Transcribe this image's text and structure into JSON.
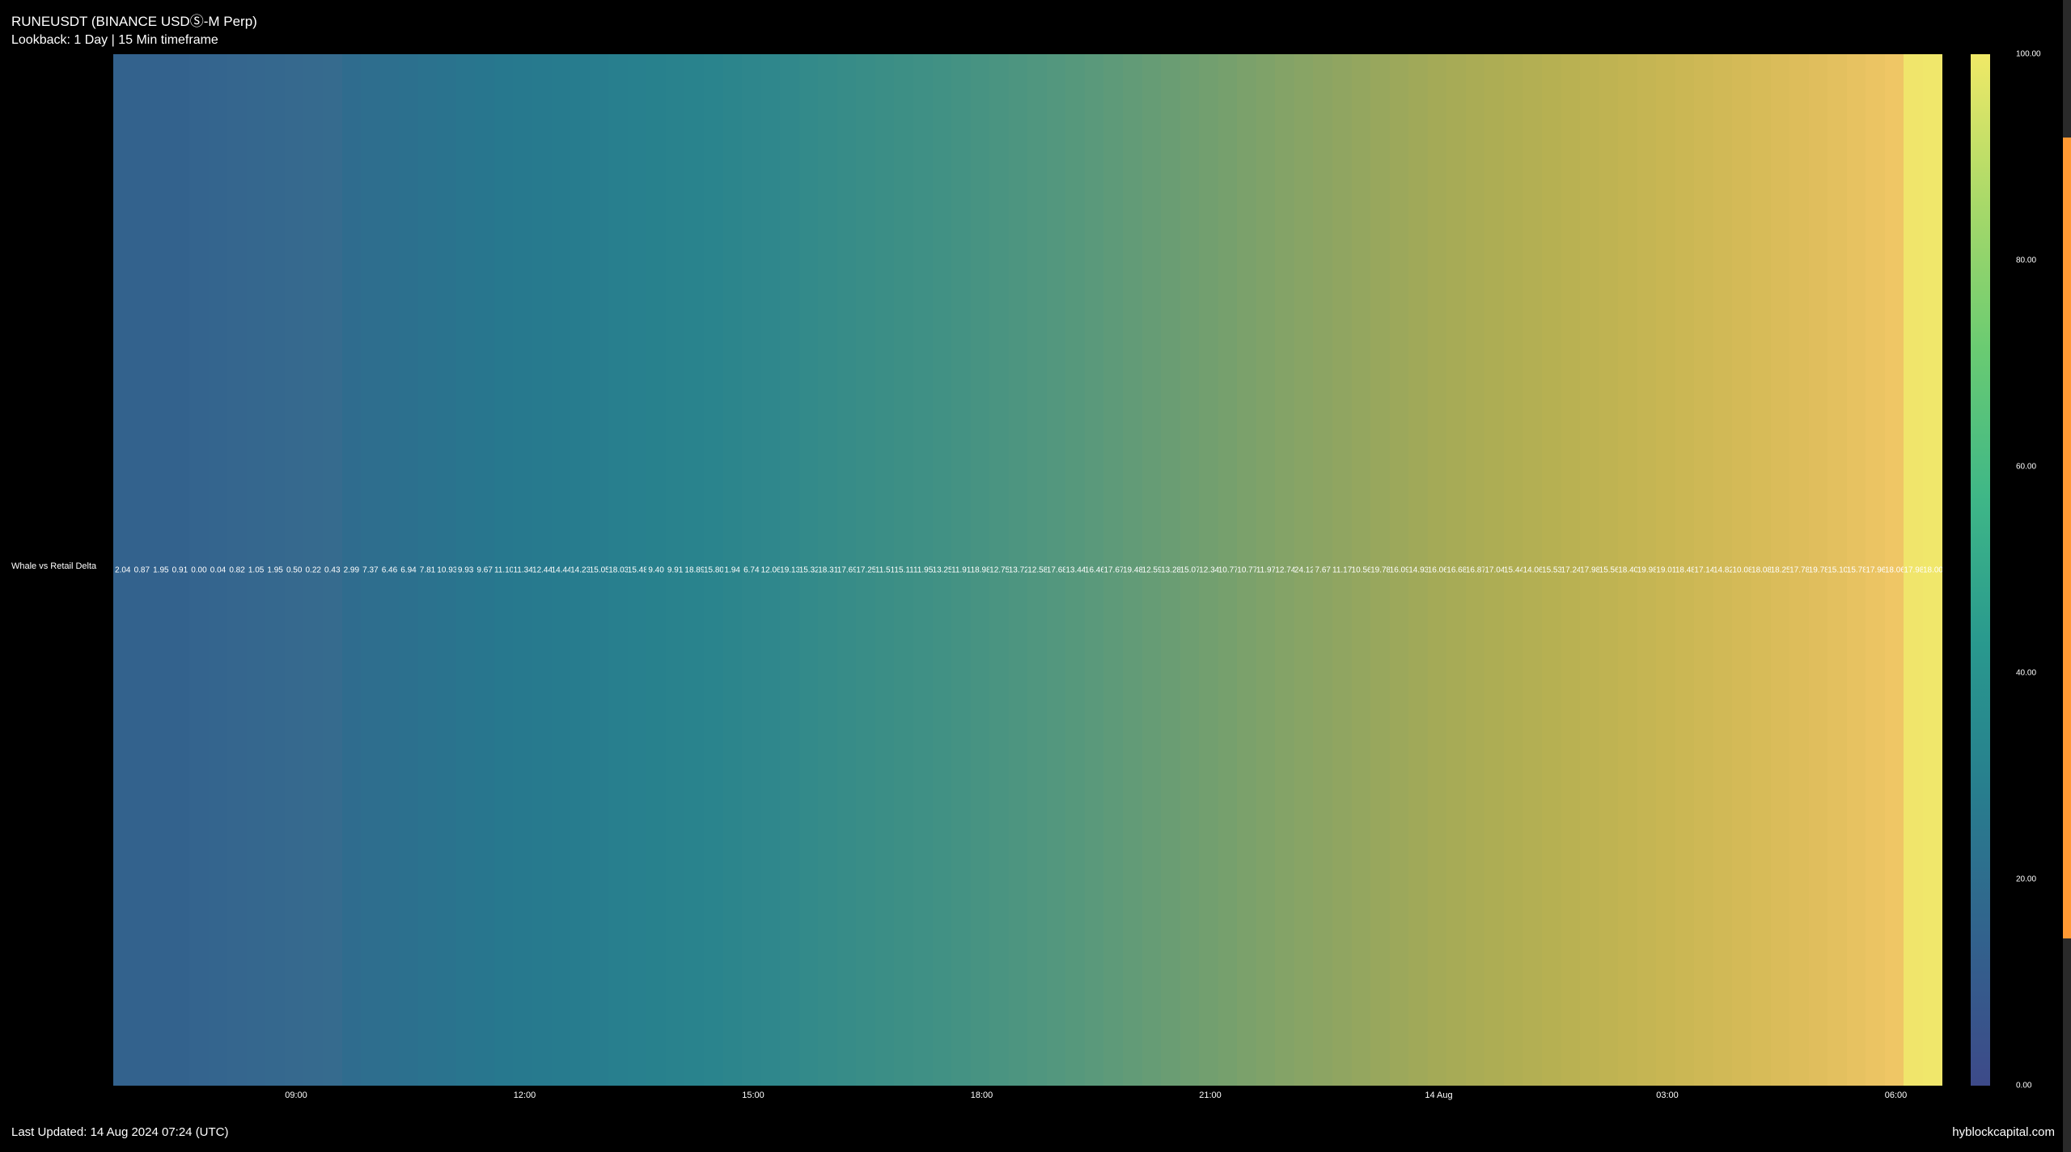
{
  "header": {
    "title": "RUNEUSDT (BINANCE USDⓈ-M Perp)",
    "subtitle": "Lookback: 1 Day | 15 Min timeframe"
  },
  "chart": {
    "type": "heatmap",
    "y_axis_label": "Whale vs Retail Delta",
    "background_color": "#000000",
    "text_color": "#ffffff",
    "values": [
      "2.04",
      "0.87",
      "1.95",
      "0.91",
      "0.00",
      "0.04",
      "0.82",
      "1.05",
      "1.95",
      "0.50",
      "0.22",
      "0.43",
      "2.99",
      "7.37",
      "6.46",
      "6.94",
      "7.81",
      "10.93",
      "9.93",
      "9.67",
      "11.10",
      "11.34",
      "12.44",
      "14.44",
      "14.23",
      "15.05",
      "18.03",
      "15.48",
      "9.40",
      "9.91",
      "18.89",
      "15.80",
      "1.94",
      "6.74",
      "12.06",
      "19.13",
      "15.32",
      "18.31",
      "17.69",
      "17.25",
      "11.51",
      "15.11",
      "11.95",
      "13.25",
      "11.91",
      "18.98",
      "12.75",
      "13.72",
      "12.58",
      "17.68",
      "13.44",
      "16.46",
      "17.67",
      "19.48",
      "12.59",
      "13.28",
      "15.07",
      "12.34",
      "10.77",
      "10.77",
      "11.97",
      "12.74",
      "24.12",
      "7.67",
      "11.17",
      "10.56",
      "19.78",
      "16.09",
      "14.93",
      "16.06",
      "16.68",
      "16.87",
      "17.04",
      "15.44",
      "14.06",
      "15.53",
      "17.24",
      "17.98",
      "15.56",
      "18.40",
      "19.98",
      "19.01",
      "18.48",
      "17.14",
      "14.82",
      "10.08",
      "18.08",
      "18.25",
      "17.78",
      "19.78",
      "15.10",
      "15.78",
      "17.96",
      "18.06",
      "17.98",
      "18.00"
    ],
    "colors": [
      "#33628d",
      "#33628d",
      "#33628d",
      "#33628d",
      "#34648e",
      "#34658e",
      "#35668e",
      "#35678e",
      "#35688e",
      "#36698e",
      "#366a8e",
      "#366b8e",
      "#2f6c8e",
      "#2e6e8e",
      "#2d6f8e",
      "#2c708e",
      "#2b728e",
      "#2a738e",
      "#29758e",
      "#28768e",
      "#27788e",
      "#27798e",
      "#277a8e",
      "#277b8e",
      "#277c8e",
      "#287d8e",
      "#287f8e",
      "#28808e",
      "#28818d",
      "#29828d",
      "#29838d",
      "#2a848d",
      "#2c858c",
      "#2e868c",
      "#2f878c",
      "#31888b",
      "#338a8a",
      "#358b89",
      "#378c88",
      "#398d87",
      "#3b8e86",
      "#3d8f85",
      "#3f9085",
      "#419184",
      "#449283",
      "#479382",
      "#4a9481",
      "#4d9580",
      "#50967f",
      "#53977e",
      "#56987c",
      "#5a997b",
      "#5e9a79",
      "#629b77",
      "#669c75",
      "#6a9d73",
      "#6e9e71",
      "#729f6f",
      "#76a06d",
      "#7ba16b",
      "#7fa269",
      "#84a367",
      "#88a465",
      "#8ca463",
      "#90a561",
      "#94a65f",
      "#98a75d",
      "#9ca85b",
      "#a0a959",
      "#a4aa57",
      "#a7ab56",
      "#aaac55",
      "#adad54",
      "#b0ae53",
      "#b3af53",
      "#b6b052",
      "#b9b152",
      "#bcb252",
      "#bfb352",
      "#c2b452",
      "#c5b553",
      "#c8b653",
      "#cbb754",
      "#ceb855",
      "#d1b956",
      "#d4ba57",
      "#d7bb58",
      "#dabc5a",
      "#ddbd5b",
      "#e0be5d",
      "#e3c05f",
      "#e7c261",
      "#ebc463",
      "#efc665",
      "#f0e56b",
      "#f0e76b"
    ],
    "x_ticks": [
      {
        "label": "09:00",
        "position": 0.1
      },
      {
        "label": "12:00",
        "position": 0.225
      },
      {
        "label": "15:00",
        "position": 0.35
      },
      {
        "label": "18:00",
        "position": 0.475
      },
      {
        "label": "21:00",
        "position": 0.6
      },
      {
        "label": "14 Aug",
        "position": 0.725
      },
      {
        "label": "03:00",
        "position": 0.85
      },
      {
        "label": "06:00",
        "position": 0.975
      }
    ]
  },
  "colorbar": {
    "ticks": [
      {
        "label": "100.00",
        "position": 0.0
      },
      {
        "label": "80.00",
        "position": 0.2
      },
      {
        "label": "60.00",
        "position": 0.4
      },
      {
        "label": "40.00",
        "position": 0.6
      },
      {
        "label": "20.00",
        "position": 0.8
      },
      {
        "label": "0.00",
        "position": 1.0
      }
    ],
    "gradient": [
      "#f0e967",
      "#a9d969",
      "#6acb72",
      "#3fb787",
      "#29998e",
      "#287e8e",
      "#32628d",
      "#3d4a89"
    ]
  },
  "footer": {
    "left": "Last Updated: 14 Aug 2024 07:24 (UTC)",
    "right": "hyblockcapital.com"
  }
}
